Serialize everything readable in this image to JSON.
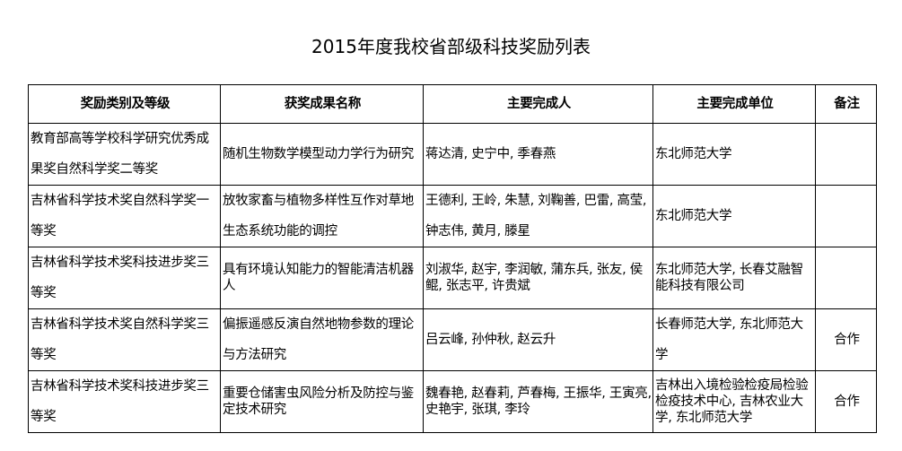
{
  "title": "2015年度我校省部级科技奖励列表",
  "headers": [
    "奖励类别及等级",
    "获奖成果名称",
    "主要完成人",
    "主要完成单位",
    "备注"
  ],
  "rows": [
    {
      "category": "教育部高等学校科学研究优秀成果奖自然科学奖二等奖",
      "achievement": "随机生物数学模型动力学行为研究",
      "persons": "蒋达清, 史宁中, 季春燕",
      "units": "东北师范大学",
      "note": ""
    },
    {
      "category": "吉林省科学技术奖自然科学奖一等奖",
      "achievement": "放牧家畜与植物多样性互作对草地生态系统功能的调控",
      "persons": "王德利, 王岭, 朱慧, 刘鞠善, 巴雷, 高莹, 钟志伟, 黄月, 滕星",
      "units": "东北师范大学",
      "note": ""
    },
    {
      "category": "吉林省科学技术奖科技进步奖三等奖",
      "achievement": "具有环境认知能力的智能清洁机器人",
      "persons": "刘淑华, 赵宇, 李润敏, 蒲东兵, 张友, 侯鲲, 张志平, 许贵斌",
      "units": "东北师范大学, 长春艾融智能科技有限公司",
      "note": ""
    },
    {
      "category": "吉林省科学技术奖自然科学奖三等奖",
      "achievement": "偏振遥感反演自然地物参数的理论与方法研究",
      "persons": "吕云峰, 孙仲秋, 赵云升",
      "units": "长春师范大学, 东北师范大学",
      "note": "合作"
    },
    {
      "category": "吉林省科学技术奖科技进步奖三等奖",
      "achievement": "重要仓储害虫风险分析及防控与鉴定技术研究",
      "persons": "魏春艳, 赵春莉, 芦春梅, 王振华, 王寅亮, 史艳宇, 张琪, 李玲",
      "units": "吉林出入境检验检疫局检验检疫技术中心, 吉林农业大学, 东北师范大学",
      "note": "合作"
    }
  ]
}
